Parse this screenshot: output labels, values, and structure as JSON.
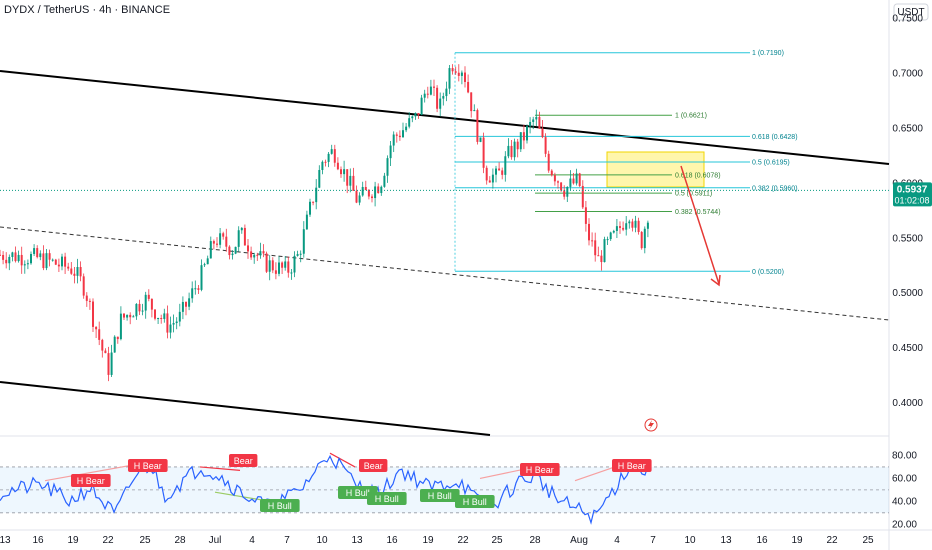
{
  "header": {
    "title": "DYDX / TetherUS · 4h · BINANCE",
    "currency": "USDT"
  },
  "price_marker": {
    "price": "0.5937",
    "countdown": "01:02:08"
  },
  "chart_data": [
    {
      "type": "candlestick",
      "title": "DYDX / TetherUS · 4h · BINANCE",
      "y_axis": {
        "label": "USDT",
        "ticks": [
          "0.7500",
          "0.7000",
          "0.6500",
          "0.6000",
          "0.5500",
          "0.5000",
          "0.4500",
          "0.4000"
        ],
        "ylim": [
          0.37,
          0.767
        ]
      },
      "x_axis": {
        "ticks": [
          "13",
          "16",
          "19",
          "22",
          "25",
          "28",
          "Jul",
          "4",
          "7",
          "10",
          "13",
          "16",
          "19",
          "22",
          "25",
          "28",
          "Aug",
          "4",
          "7",
          "10",
          "13",
          "16",
          "19",
          "22",
          "25"
        ]
      },
      "price_path": [
        {
          "t": "13",
          "p": 0.535
        },
        {
          "t": "16",
          "p": 0.532
        },
        {
          "t": "19",
          "p": 0.522
        },
        {
          "t": "20",
          "p": 0.505
        },
        {
          "t": "22",
          "p": 0.43
        },
        {
          "t": "23",
          "p": 0.475
        },
        {
          "t": "25",
          "p": 0.495
        },
        {
          "t": "27",
          "p": 0.47
        },
        {
          "t": "28",
          "p": 0.478
        },
        {
          "t": "30",
          "p": 0.52
        },
        {
          "t": "Jul",
          "p": 0.55
        },
        {
          "t": "2",
          "p": 0.54
        },
        {
          "t": "3",
          "p": 0.555
        },
        {
          "t": "4",
          "p": 0.54
        },
        {
          "t": "5",
          "p": 0.528
        },
        {
          "t": "7",
          "p": 0.52
        },
        {
          "t": "8",
          "p": 0.535
        },
        {
          "t": "10",
          "p": 0.62
        },
        {
          "t": "11",
          "p": 0.63
        },
        {
          "t": "13",
          "p": 0.585
        },
        {
          "t": "15",
          "p": 0.6
        },
        {
          "t": "16",
          "p": 0.64
        },
        {
          "t": "18",
          "p": 0.66
        },
        {
          "t": "19",
          "p": 0.69
        },
        {
          "t": "20",
          "p": 0.668
        },
        {
          "t": "21",
          "p": 0.71
        },
        {
          "t": "22",
          "p": 0.705
        },
        {
          "t": "23",
          "p": 0.66
        },
        {
          "t": "24",
          "p": 0.61
        },
        {
          "t": "25",
          "p": 0.605
        },
        {
          "t": "26",
          "p": 0.628
        },
        {
          "t": "27",
          "p": 0.64
        },
        {
          "t": "28",
          "p": 0.66
        },
        {
          "t": "29",
          "p": 0.615
        },
        {
          "t": "30",
          "p": 0.595
        },
        {
          "t": "31",
          "p": 0.603
        },
        {
          "t": "Aug",
          "p": 0.56
        },
        {
          "t": "2",
          "p": 0.53
        },
        {
          "t": "3",
          "p": 0.54
        },
        {
          "t": "4",
          "p": 0.555
        },
        {
          "t": "5",
          "p": 0.575
        },
        {
          "t": "6",
          "p": 0.545
        },
        {
          "t": "7",
          "p": 0.594
        }
      ],
      "fib_levels_upper": [
        {
          "label": "1 (0.7190)",
          "value": 0.719
        },
        {
          "label": "0.618 (0.6428)",
          "value": 0.6428
        },
        {
          "label": "0.5 (0.6195)",
          "value": 0.6195
        },
        {
          "label": "0.382 (0.5960)",
          "value": 0.596
        },
        {
          "label": "0 (0.5200)",
          "value": 0.52
        }
      ],
      "fib_levels_lower": [
        {
          "label": "1 (0.6621)",
          "value": 0.6621
        },
        {
          "label": "0.618 (0.6078)",
          "value": 0.6078
        },
        {
          "label": "0.5 (0.5911)",
          "value": 0.5911
        },
        {
          "label": "0.382 (0.5744)",
          "value": 0.5744
        }
      ],
      "current_price": 0.5937
    },
    {
      "type": "line",
      "title": "",
      "y_axis": {
        "ticks": [
          "80.00",
          "60.00",
          "40.00",
          "20.00"
        ],
        "ylim": [
          15,
          90
        ],
        "band": [
          30,
          70
        ],
        "midline": 50
      },
      "signals": [
        {
          "label": "H Bear",
          "kind": "bear",
          "t": "19"
        },
        {
          "label": "H Bear",
          "kind": "bear",
          "t": "25"
        },
        {
          "label": "Bear",
          "kind": "bear",
          "t": "Jul"
        },
        {
          "label": "H Bull",
          "kind": "bull",
          "t": "7"
        },
        {
          "label": "H Bull",
          "kind": "bull",
          "t": "13"
        },
        {
          "label": "Bear",
          "kind": "bear",
          "t": "13"
        },
        {
          "label": "H Bull",
          "kind": "bull",
          "t": "16"
        },
        {
          "label": "H Bull",
          "kind": "bull",
          "t": "19"
        },
        {
          "label": "H Bull",
          "kind": "bull",
          "t": "22"
        },
        {
          "label": "H Bear",
          "kind": "bear",
          "t": "28"
        },
        {
          "label": "H Bear",
          "kind": "bear",
          "t": "5"
        }
      ]
    }
  ]
}
